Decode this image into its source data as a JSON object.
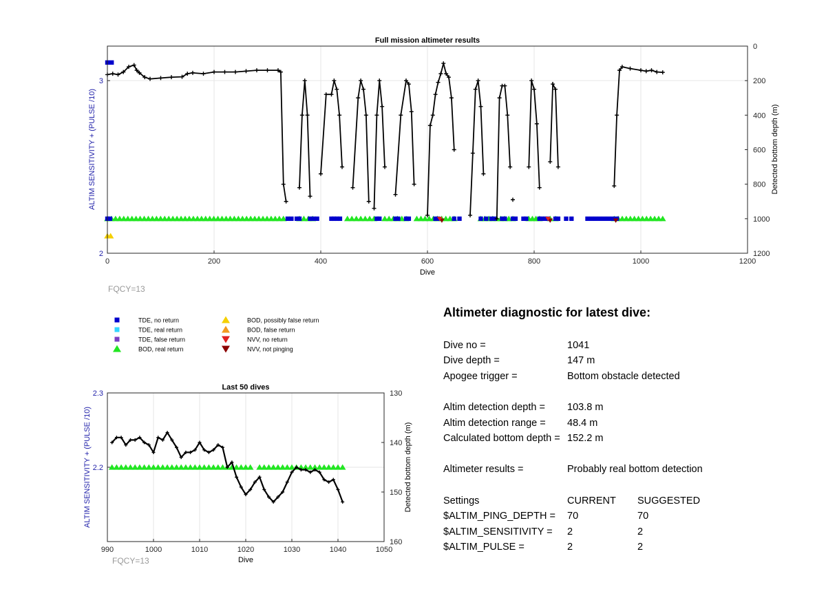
{
  "main_chart": {
    "title": "Full mission altimeter results",
    "xlabel": "Dive",
    "ylabel_left": "ALTIM SENSITIVITY + (PULSE /10)",
    "ylabel_right": "Detected bottom depth (m)",
    "xlim": [
      0,
      1200
    ],
    "xticks": [
      "0",
      "200",
      "400",
      "600",
      "800",
      "1000",
      "1200"
    ],
    "ylim_left": [
      2,
      3.2
    ],
    "yticks_left": [
      "2",
      "3"
    ],
    "ylim_right": [
      0,
      1200
    ],
    "yticks_right": [
      "0",
      "200",
      "400",
      "600",
      "800",
      "1000",
      "1200"
    ],
    "fqcy": "FQCY=13"
  },
  "inset_chart": {
    "title": "Last 50 dives",
    "xlabel": "Dive",
    "ylabel_left": "ALTIM SENSITIVITY + (PULSE /10)",
    "ylabel_right": "Detected bottom depth (m)",
    "xlim": [
      990,
      1050
    ],
    "xticks": [
      "990",
      "1000",
      "1010",
      "1020",
      "1030",
      "1040",
      "1050"
    ],
    "ylim_left": [
      2.1,
      2.3
    ],
    "yticks_left": [
      "2.2",
      "2.3"
    ],
    "ylim_right": [
      130,
      160
    ],
    "yticks_right": [
      "130",
      "140",
      "150",
      "160"
    ],
    "fqcy": "FQCY=13"
  },
  "legend": {
    "items": [
      {
        "label": "TDE, no return",
        "marker": "square",
        "color": "#0000cc"
      },
      {
        "label": "TDE, real return",
        "marker": "square",
        "color": "#33d6ff"
      },
      {
        "label": "TDE, false return",
        "marker": "square",
        "color": "#7b3fc4"
      },
      {
        "label": "BOD, real return",
        "marker": "triangle-up",
        "color": "#22e622"
      },
      {
        "label": "BOD, possibly false return",
        "marker": "triangle-up",
        "color": "#f5d000"
      },
      {
        "label": "BOD, false return",
        "marker": "triangle-up",
        "color": "#f39a1e"
      },
      {
        "label": "NVV, no return",
        "marker": "triangle-down",
        "color": "#e02020"
      },
      {
        "label": "NVV, not pinging",
        "marker": "triangle-down",
        "color": "#8b0000"
      }
    ]
  },
  "colors": {
    "depth_line": "#000000",
    "left_axis_text": "#2222aa",
    "fqcy_text": "#999999",
    "grid": "#e6e6e6"
  },
  "chart_data": [
    {
      "type": "scatter",
      "title": "Full mission altimeter results",
      "series": [
        {
          "name": "Detected bottom depth (m)",
          "axis": "right",
          "style": "line-marker",
          "segments": [
            [
              [
                0,
                165
              ],
              [
                10,
                160
              ],
              [
                20,
                165
              ],
              [
                30,
                150
              ],
              [
                40,
                120
              ],
              [
                50,
                110
              ],
              [
                55,
                140
              ],
              [
                60,
                155
              ],
              [
                70,
                180
              ],
              [
                80,
                190
              ],
              [
                100,
                185
              ],
              [
                120,
                180
              ],
              [
                140,
                178
              ],
              [
                150,
                160
              ],
              [
                160,
                155
              ],
              [
                180,
                160
              ],
              [
                200,
                150
              ],
              [
                220,
                150
              ],
              [
                240,
                150
              ],
              [
                260,
                145
              ],
              [
                280,
                140
              ],
              [
                300,
                140
              ],
              [
                320,
                140
              ],
              [
                325,
                150
              ],
              [
                330,
                800
              ],
              [
                335,
                900
              ]
            ],
            [
              [
                360,
                820
              ],
              [
                365,
                400
              ],
              [
                370,
                200
              ],
              [
                375,
                400
              ],
              [
                380,
                870
              ]
            ],
            [
              [
                400,
                740
              ],
              [
                410,
                280
              ],
              [
                420,
                280
              ],
              [
                425,
                200
              ],
              [
                430,
                250
              ],
              [
                435,
                400
              ],
              [
                440,
                700
              ]
            ],
            [
              [
                460,
                820
              ],
              [
                470,
                300
              ],
              [
                475,
                200
              ],
              [
                480,
                250
              ],
              [
                485,
                400
              ],
              [
                490,
                900
              ]
            ],
            [
              [
                500,
                940
              ],
              [
                505,
                400
              ],
              [
                510,
                200
              ],
              [
                515,
                350
              ],
              [
                520,
                700
              ]
            ],
            [
              [
                540,
                860
              ],
              [
                550,
                400
              ],
              [
                560,
                200
              ],
              [
                565,
                220
              ],
              [
                570,
                380
              ],
              [
                575,
                800
              ]
            ],
            [
              [
                600,
                980
              ],
              [
                605,
                460
              ],
              [
                610,
                400
              ],
              [
                615,
                280
              ],
              [
                620,
                210
              ],
              [
                625,
                160
              ],
              [
                630,
                100
              ],
              [
                635,
                160
              ],
              [
                640,
                180
              ],
              [
                645,
                300
              ],
              [
                650,
                600
              ]
            ],
            [
              [
                680,
                980
              ],
              [
                685,
                620
              ],
              [
                690,
                250
              ],
              [
                695,
                200
              ],
              [
                700,
                350
              ],
              [
                705,
                740
              ]
            ],
            [
              [
                730,
                1000
              ],
              [
                735,
                300
              ],
              [
                740,
                230
              ],
              [
                745,
                230
              ],
              [
                750,
                400
              ],
              [
                755,
                700
              ]
            ],
            [
              [
                790,
                700
              ],
              [
                795,
                200
              ],
              [
                800,
                250
              ],
              [
                805,
                450
              ],
              [
                810,
                820
              ]
            ],
            [
              [
                830,
                670
              ],
              [
                835,
                220
              ],
              [
                840,
                250
              ],
              [
                845,
                700
              ]
            ],
            [
              [
                950,
                810
              ],
              [
                955,
                400
              ],
              [
                960,
                140
              ],
              [
                965,
                120
              ],
              [
                980,
                130
              ],
              [
                1000,
                140
              ],
              [
                1010,
                145
              ],
              [
                1020,
                140
              ],
              [
                1030,
                150
              ],
              [
                1041,
                152
              ]
            ],
            [
              [
                760,
                890
              ]
            ]
          ]
        },
        {
          "name": "BOD, real return",
          "axis": "right",
          "style": "triangle-band",
          "y": 1000,
          "ranges": [
            [
              0,
              330
            ],
            [
              360,
              385
            ],
            [
              450,
              500
            ],
            [
              520,
              560
            ],
            [
              580,
              650
            ],
            [
              700,
              760
            ],
            [
              790,
              810
            ],
            [
              830,
              840
            ],
            [
              950,
              1041
            ]
          ]
        },
        {
          "name": "TDE, no return",
          "axis": "right",
          "style": "square-band",
          "y": 1000,
          "ranges": [
            [
              0,
              5
            ],
            [
              338,
              345
            ],
            [
              355,
              360
            ],
            [
              380,
              393
            ],
            [
              420,
              425
            ],
            [
              430,
              436
            ],
            [
              505,
              510
            ],
            [
              540,
              545
            ],
            [
              560,
              565
            ],
            [
              615,
              620
            ],
            [
              650,
              660
            ],
            [
              700,
              710
            ],
            [
              720,
              725
            ],
            [
              740,
              745
            ],
            [
              760,
              765
            ],
            [
              780,
              785
            ],
            [
              810,
              815
            ],
            [
              820,
              825
            ],
            [
              840,
              845
            ],
            [
              860,
              870
            ],
            [
              900,
              955
            ]
          ]
        },
        {
          "name": "TDE, no return (top)",
          "axis": "right",
          "style": "square-band",
          "y": 95,
          "ranges": [
            [
              0,
              8
            ]
          ]
        },
        {
          "name": "BOD, possibly false return",
          "axis": "right",
          "style": "triangle-band",
          "y": 1100,
          "ranges": [
            [
              0,
              6
            ]
          ]
        },
        {
          "name": "NVV, not pinging",
          "axis": "right",
          "style": "dtriangle-points",
          "x": [
            627,
            830,
            953
          ],
          "y": [
            1010,
            1010,
            1010
          ]
        },
        {
          "name": "NVV, no return",
          "axis": "right",
          "style": "dtriangle-points",
          "x": [
            623,
            826
          ],
          "y": [
            1000,
            1000
          ]
        }
      ]
    },
    {
      "type": "line",
      "title": "Last 50 dives",
      "series": [
        {
          "name": "Detected bottom depth (m)",
          "axis": "right",
          "style": "line-marker",
          "x": [
            991,
            992,
            993,
            994,
            995,
            996,
            997,
            998,
            999,
            1000,
            1001,
            1002,
            1003,
            1004,
            1005,
            1006,
            1007,
            1008,
            1009,
            1010,
            1011,
            1012,
            1013,
            1014,
            1015,
            1016,
            1017,
            1018,
            1019,
            1020,
            1021,
            1022,
            1023,
            1024,
            1025,
            1026,
            1027,
            1028,
            1029,
            1030,
            1031,
            1032,
            1033,
            1034,
            1035,
            1036,
            1037,
            1038,
            1039,
            1040,
            1041
          ],
          "values": [
            140,
            139,
            139,
            140.5,
            139.5,
            139.5,
            139,
            140,
            140.5,
            142,
            139,
            139.5,
            138,
            139.5,
            141,
            143,
            142,
            142,
            141.5,
            140,
            141.5,
            142,
            141.5,
            140.5,
            141,
            145,
            144,
            147,
            149,
            150.5,
            149.5,
            148,
            147,
            149.5,
            151,
            152,
            151,
            150,
            148,
            146,
            145,
            145.5,
            145.5,
            146,
            145.5,
            146,
            147.5,
            148,
            147.5,
            149.5,
            152
          ]
        },
        {
          "name": "BOD, real return",
          "axis": "right",
          "style": "triangle-band",
          "y": 145,
          "ranges": [
            [
              991,
              1021
            ],
            [
              1023,
              1041
            ]
          ]
        }
      ]
    }
  ],
  "diagnostic": {
    "title": "Altimeter diagnostic for latest dive:",
    "rows": [
      {
        "label": "Dive no =",
        "value": "1041"
      },
      {
        "label": "Dive depth =",
        "value": "147 m"
      },
      {
        "label": "Apogee trigger =",
        "value": "Bottom obstacle detected"
      },
      {
        "label": "Altim detection depth =",
        "value": "103.8 m"
      },
      {
        "label": "Altim detection range =",
        "value": "48.4 m"
      },
      {
        "label": "Calculated bottom depth =",
        "value": "152.2 m"
      },
      {
        "label": "Altimeter results =",
        "value": "Probably real bottom detection"
      }
    ],
    "settings_header": [
      "Settings",
      "CURRENT",
      "SUGGESTED"
    ],
    "settings": [
      {
        "name": "$ALTIM_PING_DEPTH =",
        "current": "70",
        "suggested": "70"
      },
      {
        "name": "$ALTIM_SENSITIVITY =",
        "current": "2",
        "suggested": "2"
      },
      {
        "name": "$ALTIM_PULSE =",
        "current": "2",
        "suggested": "2"
      }
    ]
  }
}
